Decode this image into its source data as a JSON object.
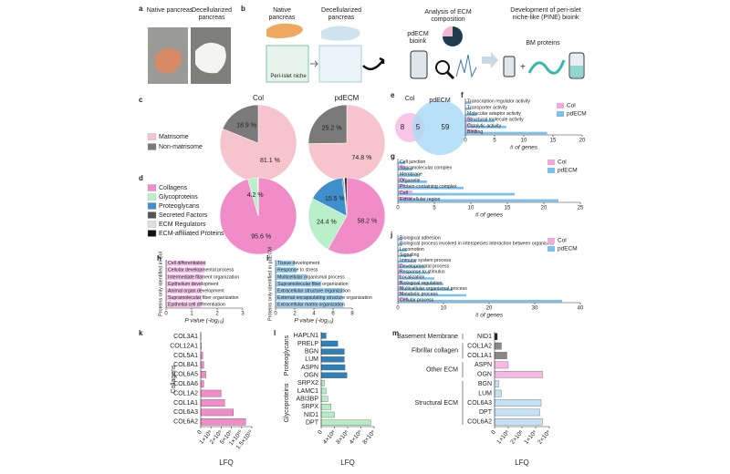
{
  "panel_a": {
    "label": "a",
    "left": "Native pancreas",
    "right": "Decellularized pancreas"
  },
  "panel_b": {
    "label": "b",
    "native": "Native pancreas",
    "decell": "Decellularized pancreas",
    "niche": "Peri-islet niche",
    "analysis": "Analysis of ECM composition",
    "bioink": "pdECM bioink",
    "development": "Development of peri-islet niche-like (PINE) bioink",
    "bm": "BM proteins"
  },
  "chart_data": [
    {
      "type": "pie",
      "label": "c",
      "categories": [
        "Matrisome",
        "Non-matrisome"
      ],
      "colors": [
        "#f5c4cc",
        "#7a7a7a"
      ],
      "pies": [
        {
          "name": "Col",
          "values": [
            81.1,
            18.9
          ],
          "value_labels": [
            "81.1 %",
            "18.9 %"
          ]
        },
        {
          "name": "pdECM",
          "values": [
            74.8,
            25.2
          ],
          "value_labels": [
            "74.8 %",
            "25.2 %"
          ]
        }
      ]
    },
    {
      "type": "pie",
      "label": "d",
      "categories": [
        "Collagens",
        "Glycoproteins",
        "Proteoglycans",
        "Secreted Factors",
        "ECM Regulators",
        "ECM-affiliated Proteins"
      ],
      "colors": [
        "#f08cc8",
        "#b9efc9",
        "#3f8fcc",
        "#555555",
        "#e0e0e0",
        "#111111"
      ],
      "pies": [
        {
          "values": [
            95.6,
            4.2,
            0.2,
            0,
            0,
            0
          ],
          "value_labels": [
            "95.6 %",
            "4.2 %",
            null,
            null,
            null,
            null
          ]
        },
        {
          "values": [
            58.2,
            24.4,
            15.5,
            0.5,
            0.5,
            0.9
          ],
          "value_labels": [
            "58.2 %",
            "24.4 %",
            "15.5 %",
            null,
            null,
            null
          ]
        }
      ]
    },
    {
      "type": "venn",
      "label": "e",
      "sets": [
        "Col",
        "pdECM"
      ],
      "values": [
        8,
        5,
        59
      ],
      "colors": [
        "#f6b8e0",
        "#a8d8f8"
      ]
    },
    {
      "type": "hbar",
      "label": "f",
      "categories": [
        "Transcription regulator activity",
        "Transporter activity",
        "Molecular adaptor activity",
        "Structural molecule activity",
        "Catalytic activity",
        "Binding"
      ],
      "series": [
        {
          "name": "Col",
          "color": "#f6a6dc",
          "values": [
            0,
            0,
            0,
            1,
            1,
            2
          ]
        },
        {
          "name": "pdECM",
          "color": "#7cc0ee",
          "values": [
            1,
            1,
            2,
            5,
            7,
            14
          ]
        }
      ],
      "xlim": [
        0,
        20
      ],
      "xticks": [
        0,
        5,
        10,
        15,
        20
      ],
      "xlabel": "# of genes",
      "legend": "upper right"
    },
    {
      "type": "hbar",
      "label": "g",
      "categories": [
        "Cell junction",
        "Supramolecular complex",
        "Membrane",
        "Organelle",
        "Protein-containing complex",
        "Cell",
        "Extracellular region"
      ],
      "series": [
        {
          "name": "Col",
          "color": "#f6a6dc",
          "values": [
            0,
            1,
            0,
            1,
            1,
            2,
            2
          ]
        },
        {
          "name": "pdECM",
          "color": "#7cc0ee",
          "values": [
            1,
            2,
            3,
            4,
            9,
            16,
            22
          ]
        }
      ],
      "xlim": [
        0,
        25
      ],
      "xticks": [
        0,
        5,
        10,
        15,
        20,
        25
      ],
      "xlabel": "# of genes",
      "legend": "upper right"
    },
    {
      "type": "hbar",
      "label": "h",
      "categories": [
        "Cell differentiation",
        "Cellular developmental process",
        "Intermediate filament organization",
        "Epithelium development",
        "Animal organ development",
        "Supramolecular fiber organization",
        "Epithelial cell differentiation"
      ],
      "values": [
        1.55,
        1.5,
        1.45,
        1.4,
        1.4,
        1.4,
        1.35
      ],
      "color": "#f6c2ea",
      "xlim": [
        0,
        3
      ],
      "xticks": [
        0,
        1,
        2,
        3
      ],
      "xlabel": "P value (-log₁₀)",
      "ylabel": "Proteins only identified in Col"
    },
    {
      "type": "hbar",
      "label": "i",
      "categories": [
        "Tissue development",
        "Response to stress",
        "Multicellular organismal process",
        "Supramolecular fiber organization",
        "Extracellular structure organization",
        "External encapsulating structure organization",
        "Extracellular matrix organization"
      ],
      "values": [
        2.0,
        2.2,
        3.3,
        4.8,
        7.0,
        7.0,
        7.1
      ],
      "color": "#9fd0f0",
      "xlim": [
        0,
        8
      ],
      "xticks": [
        0,
        2,
        4,
        6,
        8
      ],
      "xlabel": "P value (-log₁₀)",
      "ylabel": "Proteins only identified in pdECM"
    },
    {
      "type": "hbar",
      "label": "j",
      "categories": [
        "Biological adhesion",
        "Biological process involved in interspecies interaction between organisms",
        "Locomotion",
        "Signaling",
        "Immune system process",
        "Developmental process",
        "Response to stimulus",
        "Localization",
        "Biological regulation",
        "Multicellular organismal process",
        "Metabolic process",
        "Cellular process"
      ],
      "series": [
        {
          "name": "Col",
          "color": "#f6a6dc",
          "values": [
            0,
            0,
            0,
            0,
            0,
            1,
            1,
            1,
            1,
            1,
            1,
            2
          ]
        },
        {
          "name": "pdECM",
          "color": "#7cc0ee",
          "values": [
            1,
            1,
            2,
            3,
            4,
            6,
            7,
            8,
            10,
            12,
            15,
            36
          ]
        }
      ],
      "xlim": [
        0,
        40
      ],
      "xticks": [
        0,
        10,
        20,
        30,
        40
      ],
      "xlabel": "# of genes",
      "legend": "upper right"
    },
    {
      "type": "grouped_hbar",
      "label": "k",
      "axis_break": true,
      "group_labels": "vertical",
      "xlabel": "LFQ",
      "groups": [
        {
          "name": "Collagens",
          "color": "#f08cc8",
          "categories": [
            "COL3A1",
            "COL12A1",
            "COL5A1",
            "COL8A1",
            "COL6A5",
            "COL6A6",
            "COL1A2",
            "COL1A1",
            "COL6A3",
            "COL6A2"
          ],
          "values": [
            30000000,
            50000000,
            200000000,
            300000000,
            500000000,
            300000000,
            2000000000,
            3000000000,
            6000000000,
            12000000000
          ]
        }
      ],
      "xlim": [
        0,
        15000000000
      ],
      "xticks": [
        0,
        {
          "value": 1000000000,
          "label": "1×10⁹"
        },
        {
          "value": 2000000000,
          "label": "2×10⁹"
        },
        {
          "value": 5000000000,
          "label": "5×10⁹"
        },
        {
          "value": 10000000000,
          "label": "1×10¹⁰"
        },
        {
          "value": 15000000000,
          "label": "1.5×10¹⁰"
        }
      ]
    },
    {
      "type": "grouped_hbar",
      "label": "l",
      "axis_break": true,
      "group_labels": "vertical",
      "xlabel": "LFQ",
      "groups": [
        {
          "name": "Proteoglycans",
          "color": "#2f7fb8",
          "categories": [
            "HAPLN1",
            "PRELP",
            "BGN",
            "LUM",
            "ASPN",
            "OGN"
          ],
          "values": [
            150000000,
            500000000,
            700000000,
            700000000,
            720000000,
            780000000
          ]
        },
        {
          "name": "Glycoproteins",
          "color": "#b4ecc4",
          "categories": [
            "SRPX2",
            "LAMC1",
            "ABI3BP",
            "SRPX",
            "NID1",
            "DPT"
          ],
          "values": [
            100000000,
            150000000,
            200000000,
            300000000,
            400000000,
            7000000000
          ]
        }
      ],
      "xlim": [
        0,
        8000000000
      ],
      "xticks": [
        0,
        {
          "value": 400000000,
          "label": "4×10⁸"
        },
        {
          "value": 800000000,
          "label": "8×10⁸"
        },
        {
          "value": 4000000000,
          "label": "4×10⁹"
        },
        {
          "value": 8000000000,
          "label": "8×10⁹"
        }
      ]
    },
    {
      "type": "grouped_hbar",
      "label": "m",
      "axis_break": true,
      "group_labels": "horizontal",
      "xlabel": "LFQ",
      "groups": [
        {
          "name": "Basement Membrane",
          "color": "#222222",
          "categories": [
            "NID1"
          ],
          "values": [
            20000000
          ]
        },
        {
          "name": "Fibrillar collagen",
          "color": "#888888",
          "categories": [
            "COL1A2",
            "COL1A1"
          ],
          "values": [
            50000000,
            90000000
          ]
        },
        {
          "name": "Other ECM",
          "color": "#f6b8e4",
          "categories": [
            "ASPN",
            "OGN"
          ],
          "values": [
            100000000,
            1500000000
          ]
        },
        {
          "name": "Structural ECM",
          "color": "#c4e2f4",
          "categories": [
            "BGN",
            "LUM",
            "COL6A3",
            "DPT",
            "COL6A2"
          ],
          "values": [
            30000000,
            50000000,
            1400000000,
            1300000000,
            1500000000
          ]
        }
      ],
      "xlim": [
        0,
        2000000000
      ],
      "xticks": [
        0,
        {
          "value": 100000000,
          "label": "1×10⁸"
        },
        {
          "value": 200000000,
          "label": "2×10⁸"
        },
        {
          "value": 1000000000,
          "label": "1×10⁹"
        },
        {
          "value": 2000000000,
          "label": "2×10⁹"
        }
      ]
    }
  ]
}
